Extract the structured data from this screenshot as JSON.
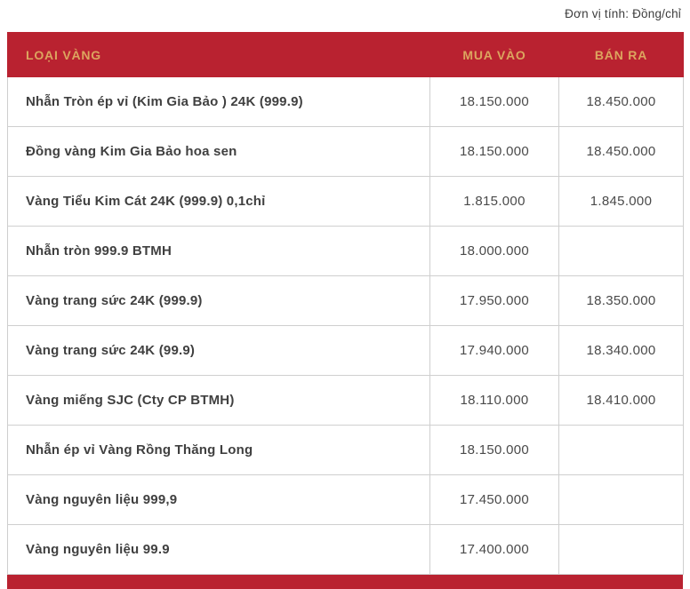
{
  "unit_note": "Đơn vị tính: Đồng/chỉ",
  "colors": {
    "header_bg": "#b92230",
    "header_text": "#dca55f",
    "row_border": "#cfcfcf",
    "body_text": "#454545"
  },
  "table": {
    "headers": {
      "type": "LOẠI VÀNG",
      "buy": "MUA VÀO",
      "sell": "BÁN RA"
    },
    "rows": [
      {
        "name": "Nhẫn Tròn ép vỉ (Kim Gia Bảo ) 24K (999.9)",
        "buy": "18.150.000",
        "sell": "18.450.000"
      },
      {
        "name": "Đồng vàng Kim Gia Bảo hoa sen",
        "buy": "18.150.000",
        "sell": "18.450.000"
      },
      {
        "name": "Vàng Tiểu Kim Cát 24K (999.9) 0,1chỉ",
        "buy": "1.815.000",
        "sell": "1.845.000"
      },
      {
        "name": "Nhẫn tròn 999.9 BTMH",
        "buy": "18.000.000",
        "sell": ""
      },
      {
        "name": "Vàng trang sức 24K (999.9)",
        "buy": "17.950.000",
        "sell": "18.350.000"
      },
      {
        "name": "Vàng trang sức 24K (99.9)",
        "buy": "17.940.000",
        "sell": "18.340.000"
      },
      {
        "name": "Vàng miếng SJC (Cty CP BTMH)",
        "buy": "18.110.000",
        "sell": "18.410.000"
      },
      {
        "name": "Nhẫn ép vỉ Vàng Rồng Thăng Long",
        "buy": "18.150.000",
        "sell": ""
      },
      {
        "name": "Vàng nguyên liệu 999,9",
        "buy": "17.450.000",
        "sell": ""
      },
      {
        "name": "Vàng nguyên liệu 99.9",
        "buy": "17.400.000",
        "sell": ""
      }
    ]
  }
}
